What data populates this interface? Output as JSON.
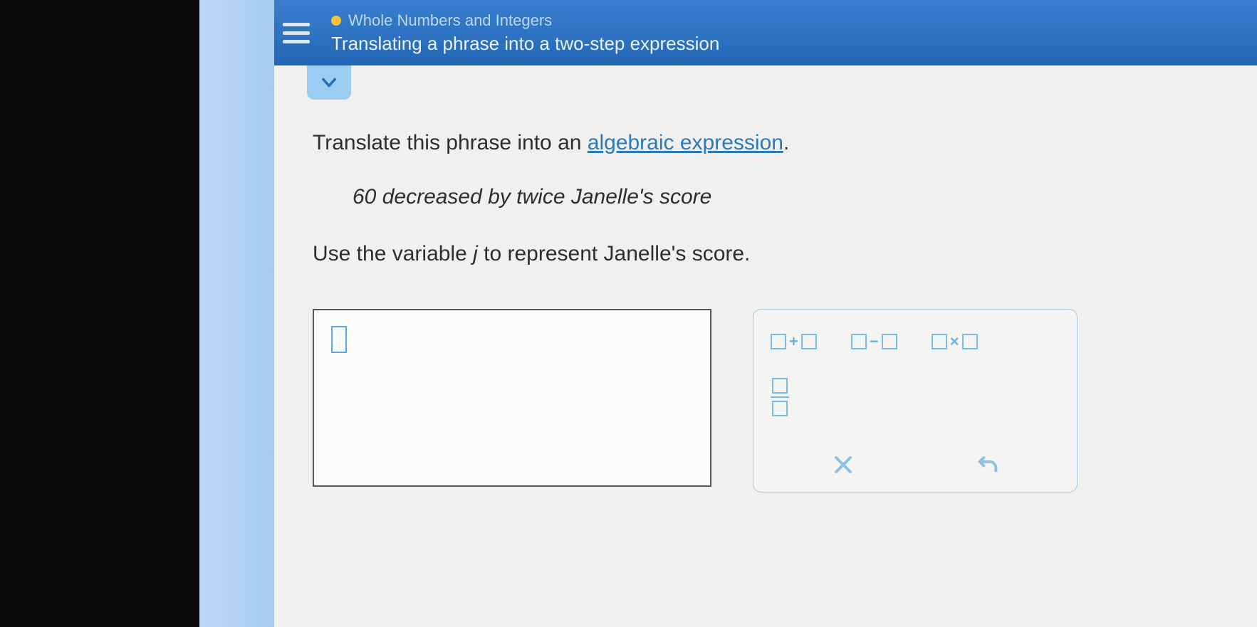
{
  "colors": {
    "header_bg": "#2d74c4",
    "header_text": "#eaf4ff",
    "category_text": "#bcd6ef",
    "dot": "#f9c23c",
    "sidebar_strip": "#a8ccf0",
    "left_dark": "#0a0a0c",
    "content_bg": "#f1f0ee",
    "body_text": "#2a2f33",
    "link": "#2b7ab9",
    "box_border": "#4f5a61",
    "keypad_border": "#a9c9e2",
    "keypad_icon": "#7cbbe2",
    "chev_tab": "#9bcdf3"
  },
  "header": {
    "category": "Whole Numbers and Integers",
    "topic": "Translating a phrase into a two-step expression"
  },
  "question": {
    "prompt_prefix": "Translate this phrase into an ",
    "prompt_link": "algebraic expression",
    "prompt_suffix": ".",
    "phrase": "60 decreased by twice Janelle's score",
    "instruction_prefix": "Use the variable ",
    "instruction_var": "j",
    "instruction_suffix": " to represent Janelle's score."
  },
  "answer": {
    "value": ""
  },
  "keypad": {
    "ops": [
      {
        "id": "plus",
        "symbol": "+",
        "name": "add-button"
      },
      {
        "id": "minus",
        "symbol": "−",
        "name": "subtract-button"
      },
      {
        "id": "times",
        "symbol": "×",
        "name": "multiply-button"
      }
    ],
    "fraction_name": "fraction-button",
    "clear_name": "clear-button",
    "undo_name": "undo-button"
  }
}
